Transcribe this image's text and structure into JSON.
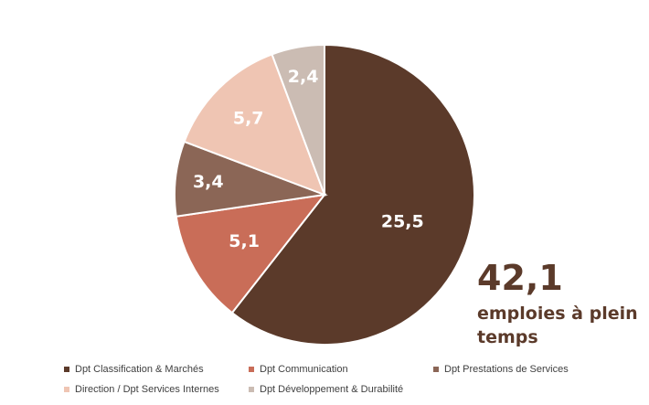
{
  "chart_data": {
    "type": "pie",
    "categories": [
      "Dpt Classification & Marchés",
      "Dpt Communication",
      "Dpt Prestations de Services",
      "Direction / Dpt Services Internes",
      "Dpt Développement & Durabilité"
    ],
    "values": [
      25.5,
      5.1,
      3.4,
      5.7,
      2.4
    ],
    "value_labels": [
      "25,5",
      "5,1",
      "3,4",
      "5,7",
      "2,4"
    ],
    "colors": [
      "#5b3a2a",
      "#c96d58",
      "#8b6656",
      "#efc5b3",
      "#cbbcb3"
    ],
    "title": "",
    "legend_position": "bottom"
  },
  "total": {
    "value": "42,1",
    "label": "emploies à plein temps"
  }
}
